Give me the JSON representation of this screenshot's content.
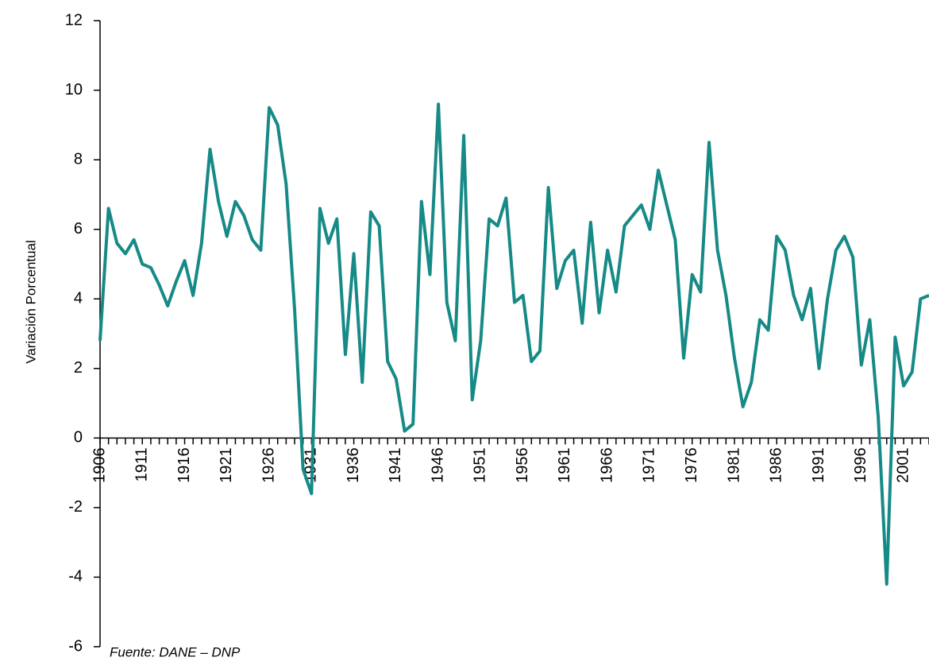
{
  "chart_data": {
    "type": "line",
    "y_label": "Variación Porcentual",
    "annotation": "Fuente:    DANE – DNP",
    "x": [
      1906,
      1907,
      1908,
      1909,
      1910,
      1911,
      1912,
      1913,
      1914,
      1915,
      1916,
      1917,
      1918,
      1919,
      1920,
      1921,
      1922,
      1923,
      1924,
      1925,
      1926,
      1927,
      1928,
      1929,
      1930,
      1931,
      1932,
      1933,
      1934,
      1935,
      1936,
      1937,
      1938,
      1939,
      1940,
      1941,
      1942,
      1943,
      1944,
      1945,
      1946,
      1947,
      1948,
      1949,
      1950,
      1951,
      1952,
      1953,
      1954,
      1955,
      1956,
      1957,
      1958,
      1959,
      1960,
      1961,
      1962,
      1963,
      1964,
      1965,
      1966,
      1967,
      1968,
      1969,
      1970,
      1971,
      1972,
      1973,
      1974,
      1975,
      1976,
      1977,
      1978,
      1979,
      1980,
      1981,
      1982,
      1983,
      1984,
      1985,
      1986,
      1987,
      1988,
      1989,
      1990,
      1991,
      1992,
      1993,
      1994,
      1995,
      1996,
      1997,
      1998,
      1999,
      2000,
      2001,
      2002,
      2003,
      2004
    ],
    "series": [
      {
        "name": "Variación Porcentual",
        "color": "#168a86",
        "values": [
          2.8,
          6.6,
          5.6,
          5.3,
          5.7,
          5.0,
          4.9,
          4.4,
          3.8,
          4.5,
          5.1,
          4.1,
          5.6,
          8.3,
          6.8,
          5.8,
          6.8,
          6.4,
          5.7,
          5.4,
          9.5,
          9.0,
          7.3,
          3.7,
          -0.9,
          -1.6,
          6.6,
          5.6,
          6.3,
          2.4,
          5.3,
          1.6,
          6.5,
          6.1,
          2.2,
          1.7,
          0.2,
          0.4,
          6.8,
          4.7,
          9.6,
          3.9,
          2.8,
          8.7,
          1.1,
          2.8,
          6.3,
          6.1,
          6.9,
          3.9,
          4.1,
          2.2,
          2.5,
          7.2,
          4.3,
          5.1,
          5.4,
          3.3,
          6.2,
          3.6,
          5.4,
          4.2,
          6.1,
          6.4,
          6.7,
          6.0,
          7.7,
          6.7,
          5.7,
          2.3,
          4.7,
          4.2,
          8.5,
          5.4,
          4.1,
          2.3,
          0.9,
          1.6,
          3.4,
          3.1,
          5.8,
          5.4,
          4.1,
          3.4,
          4.3,
          2.0,
          4.0,
          5.4,
          5.8,
          5.2,
          2.1,
          3.4,
          0.6,
          -4.2,
          2.9,
          1.5,
          1.9,
          4.0,
          4.1
        ]
      }
    ],
    "xlim": [
      1906,
      2004
    ],
    "xticks": [
      1906,
      1911,
      1916,
      1921,
      1926,
      1931,
      1936,
      1941,
      1946,
      1951,
      1956,
      1961,
      1966,
      1971,
      1976,
      1981,
      1986,
      1991,
      1996,
      2001
    ],
    "ylim": [
      -6,
      12
    ],
    "yticks": [
      -6,
      -4,
      -2,
      0,
      2,
      4,
      6,
      8,
      10,
      12
    ],
    "grid": false
  }
}
